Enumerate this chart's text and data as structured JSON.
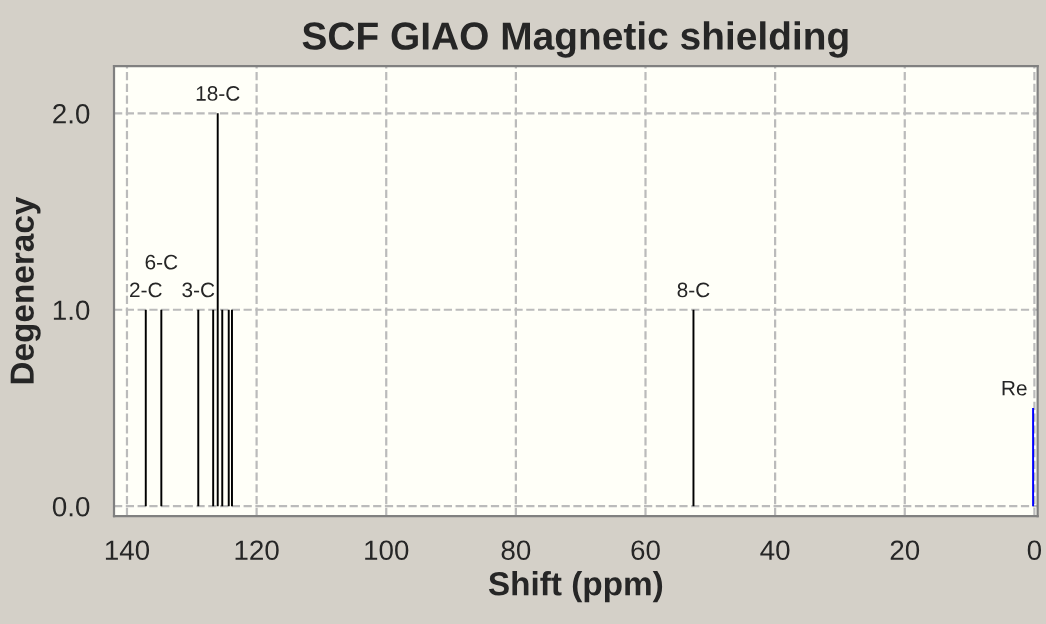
{
  "chart_data": {
    "type": "bar",
    "title": "SCF GIAO Magnetic shielding",
    "xlabel": "Shift (ppm)",
    "ylabel": "Degeneracy",
    "series": [
      {
        "color": "#000000",
        "x": [
          137.1,
          134.7,
          129.0,
          126.7,
          126.0,
          125.3,
          124.3,
          123.8,
          52.6
        ],
        "values": [
          1,
          1,
          1,
          1,
          2,
          1,
          1,
          1,
          1
        ]
      },
      {
        "color": "#0000ff",
        "x": [
          0.2
        ],
        "values": [
          0.5
        ]
      }
    ],
    "annotations": [
      {
        "text": "2-C",
        "x": 137.1,
        "y": 1
      },
      {
        "text": "6-C",
        "x": 134.7,
        "y": 1
      },
      {
        "text": "3-C",
        "x": 129.0,
        "y": 1
      },
      {
        "text": "18-C",
        "x": 126.0,
        "y": 2
      },
      {
        "text": "8-C",
        "x": 52.6,
        "y": 1
      },
      {
        "text": "Re",
        "x": 0.2,
        "y": 0.5
      }
    ],
    "xlim": [
      142,
      -0.5
    ],
    "xticks": [
      140,
      120,
      100,
      80,
      60,
      40,
      20,
      0
    ],
    "ylim": [
      -0.05,
      2.24
    ],
    "yticks": [
      {
        "value": 0,
        "label": "0.0"
      },
      {
        "value": 1,
        "label": "1.0"
      },
      {
        "value": 2,
        "label": "2.0"
      }
    ],
    "grid": true
  }
}
